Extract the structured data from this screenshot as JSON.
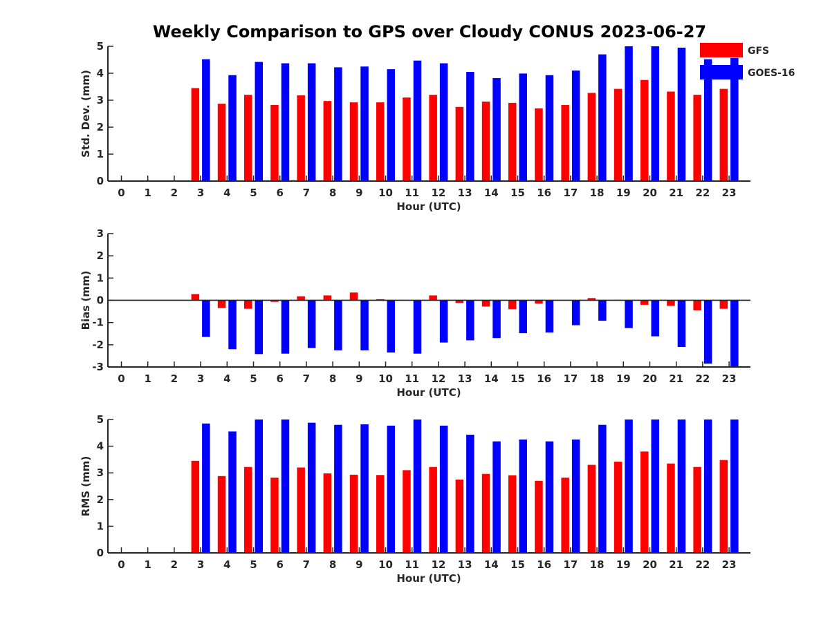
{
  "title": "Weekly Comparison to GPS over Cloudy CONUS 2023-06-27",
  "colors": {
    "GFS": "#ff0000",
    "GOES-16": "#0000ff"
  },
  "legend": {
    "placement": "top-right",
    "entries": [
      "GFS",
      "GOES-16"
    ]
  },
  "chart_data": [
    {
      "type": "bar",
      "ylabel": "Std. Dev. (mm)",
      "xlabel": "Hour (UTC)",
      "ylim": [
        0,
        5
      ],
      "yticks": [
        0,
        1,
        2,
        3,
        4,
        5
      ],
      "categories": [
        "0",
        "1",
        "2",
        "3",
        "4",
        "5",
        "6",
        "7",
        "8",
        "9",
        "10",
        "11",
        "12",
        "13",
        "14",
        "15",
        "16",
        "17",
        "18",
        "19",
        "20",
        "21",
        "22",
        "23"
      ],
      "series": [
        {
          "name": "GFS",
          "values": [
            null,
            null,
            null,
            3.45,
            2.87,
            3.2,
            2.82,
            3.18,
            2.97,
            2.92,
            2.92,
            3.1,
            3.2,
            2.75,
            2.95,
            2.9,
            2.7,
            2.82,
            3.27,
            3.42,
            3.75,
            3.32,
            3.2,
            3.42
          ]
        },
        {
          "name": "GOES-16",
          "values": [
            null,
            null,
            null,
            4.52,
            3.93,
            4.42,
            4.37,
            4.37,
            4.22,
            4.25,
            4.15,
            4.47,
            4.37,
            4.05,
            3.82,
            3.99,
            3.93,
            4.1,
            4.7,
            5.0,
            5.0,
            4.95,
            4.52,
            4.57
          ]
        }
      ]
    },
    {
      "type": "bar",
      "ylabel": "Bias (mm)",
      "xlabel": "Hour (UTC)",
      "ylim": [
        -3,
        3
      ],
      "yticks": [
        -3,
        -2,
        -1,
        0,
        1,
        2,
        3
      ],
      "zero_line": true,
      "categories": [
        "0",
        "1",
        "2",
        "3",
        "4",
        "5",
        "6",
        "7",
        "8",
        "9",
        "10",
        "11",
        "12",
        "13",
        "14",
        "15",
        "16",
        "17",
        "18",
        "19",
        "20",
        "21",
        "22",
        "23"
      ],
      "series": [
        {
          "name": "GFS",
          "values": [
            null,
            null,
            null,
            0.28,
            -0.35,
            -0.38,
            -0.07,
            0.18,
            0.22,
            0.35,
            0.05,
            0.0,
            0.22,
            -0.12,
            -0.28,
            -0.4,
            -0.15,
            0.0,
            0.1,
            0.02,
            -0.2,
            -0.25,
            -0.45,
            -0.38
          ]
        },
        {
          "name": "GOES-16",
          "values": [
            null,
            null,
            null,
            -1.65,
            -2.2,
            -2.42,
            -2.4,
            -2.15,
            -2.25,
            -2.25,
            -2.35,
            -2.4,
            -1.9,
            -1.8,
            -1.7,
            -1.48,
            -1.45,
            -1.12,
            -0.92,
            -1.25,
            -1.62,
            -2.1,
            -2.85,
            -3.0
          ]
        }
      ]
    },
    {
      "type": "bar",
      "ylabel": "RMS (mm)",
      "xlabel": "Hour (UTC)",
      "ylim": [
        0,
        5
      ],
      "yticks": [
        0,
        1,
        2,
        3,
        4,
        5
      ],
      "categories": [
        "0",
        "1",
        "2",
        "3",
        "4",
        "5",
        "6",
        "7",
        "8",
        "9",
        "10",
        "11",
        "12",
        "13",
        "14",
        "15",
        "16",
        "17",
        "18",
        "19",
        "20",
        "21",
        "22",
        "23"
      ],
      "series": [
        {
          "name": "GFS",
          "values": [
            null,
            null,
            null,
            3.45,
            2.88,
            3.22,
            2.82,
            3.2,
            2.98,
            2.93,
            2.92,
            3.1,
            3.22,
            2.75,
            2.96,
            2.91,
            2.7,
            2.82,
            3.3,
            3.42,
            3.8,
            3.35,
            3.22,
            3.48
          ]
        },
        {
          "name": "GOES-16",
          "values": [
            null,
            null,
            null,
            4.85,
            4.55,
            5.0,
            5.0,
            4.88,
            4.8,
            4.82,
            4.77,
            5.0,
            4.77,
            4.43,
            4.18,
            4.25,
            4.18,
            4.25,
            4.8,
            5.0,
            5.0,
            5.0,
            5.0,
            5.0
          ]
        }
      ]
    }
  ]
}
